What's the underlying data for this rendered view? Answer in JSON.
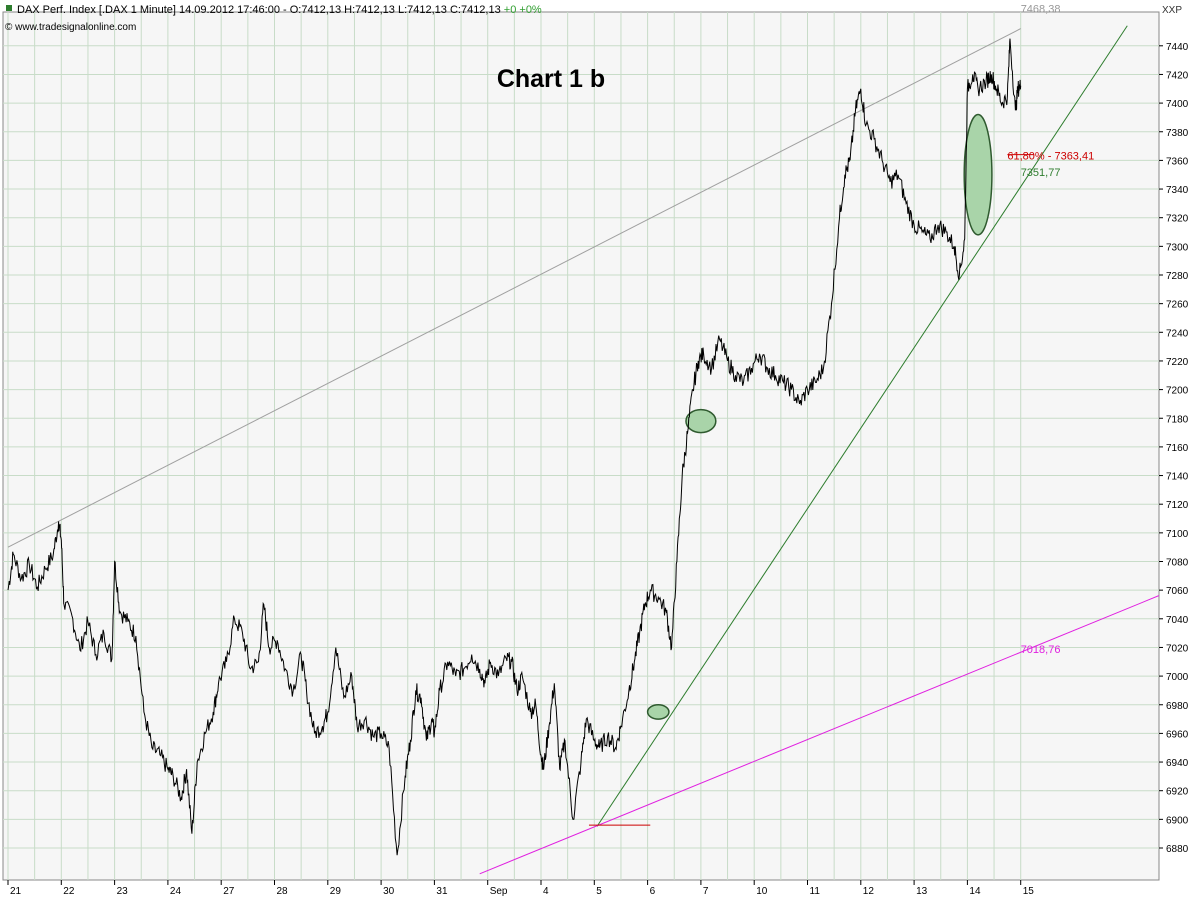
{
  "header": {
    "title": "DAX Perf. Index [.DAX  1 Minute] 14.09.2012 17:46:00 - O:7412,13 H:7412,13 L:7412,13 C:7412,13",
    "change": "+0 +0%",
    "source": "© www.tradesignalonline.com",
    "corner_label": "XXP"
  },
  "chart_data": {
    "type": "line",
    "title": "Chart 1 b",
    "xlabel": "",
    "ylabel": "",
    "ylim": [
      6862,
      7454
    ],
    "y_ticks": [
      6880,
      6900,
      6920,
      6940,
      6960,
      6980,
      7000,
      7020,
      7040,
      7060,
      7080,
      7100,
      7120,
      7140,
      7160,
      7180,
      7200,
      7220,
      7240,
      7260,
      7280,
      7300,
      7320,
      7340,
      7360,
      7380,
      7400,
      7420,
      7440
    ],
    "x_ticks": [
      "21",
      "22",
      "23",
      "24",
      "27",
      "28",
      "29",
      "30",
      "31",
      "Sep",
      "4",
      "5",
      "6",
      "7",
      "10",
      "11",
      "12",
      "13",
      "14",
      "15"
    ],
    "grid": true,
    "colors": {
      "price": "#000000",
      "upper_trendline": "#a0a0a0",
      "green_trendline": "#2e7d2e",
      "magenta_trendline": "#e020e0",
      "fib_label": "#cc0000",
      "marker_fill": "#a9d4a9",
      "marker_stroke": "#2f5a2f",
      "grid": "#c8dcc8"
    },
    "series": [
      {
        "values": [
          [
            0,
            7060
          ],
          [
            0.1,
            7085
          ],
          [
            0.25,
            7068
          ],
          [
            0.4,
            7078
          ],
          [
            0.55,
            7062
          ],
          [
            0.7,
            7075
          ],
          [
            0.85,
            7085
          ],
          [
            0.95,
            7108
          ],
          [
            1.0,
            7095
          ],
          [
            1.05,
            7050
          ],
          [
            1.2,
            7042
          ],
          [
            1.35,
            7018
          ],
          [
            1.5,
            7038
          ],
          [
            1.65,
            7015
          ],
          [
            1.8,
            7030
          ],
          [
            1.95,
            7012
          ],
          [
            2.0,
            7080
          ],
          [
            2.1,
            7045
          ],
          [
            2.25,
            7038
          ],
          [
            2.4,
            7028
          ],
          [
            2.55,
            6975
          ],
          [
            2.7,
            6950
          ],
          [
            2.85,
            6945
          ],
          [
            3.0,
            6935
          ],
          [
            3.1,
            6930
          ],
          [
            3.25,
            6915
          ],
          [
            3.35,
            6935
          ],
          [
            3.45,
            6890
          ],
          [
            3.55,
            6940
          ],
          [
            3.7,
            6960
          ],
          [
            3.85,
            6975
          ],
          [
            3.95,
            6995
          ],
          [
            4.1,
            7010
          ],
          [
            4.25,
            7040
          ],
          [
            4.4,
            7030
          ],
          [
            4.55,
            7005
          ],
          [
            4.7,
            7010
          ],
          [
            4.8,
            7050
          ],
          [
            4.9,
            7020
          ],
          [
            5.05,
            7025
          ],
          [
            5.2,
            7005
          ],
          [
            5.35,
            6990
          ],
          [
            5.5,
            7015
          ],
          [
            5.6,
            6990
          ],
          [
            5.75,
            6960
          ],
          [
            5.9,
            6965
          ],
          [
            6.0,
            6975
          ],
          [
            6.15,
            7020
          ],
          [
            6.3,
            6985
          ],
          [
            6.45,
            7000
          ],
          [
            6.55,
            6965
          ],
          [
            6.7,
            6970
          ],
          [
            6.85,
            6958
          ],
          [
            7.0,
            6960
          ],
          [
            7.15,
            6950
          ],
          [
            7.3,
            6875
          ],
          [
            7.45,
            6930
          ],
          [
            7.55,
            6955
          ],
          [
            7.65,
            6990
          ],
          [
            7.75,
            6985
          ],
          [
            7.85,
            6955
          ],
          [
            7.95,
            6970
          ],
          [
            8.0,
            6960
          ],
          [
            8.1,
            6990
          ],
          [
            8.25,
            7010
          ],
          [
            8.4,
            7000
          ],
          [
            8.55,
            7005
          ],
          [
            8.7,
            7015
          ],
          [
            8.85,
            7005
          ],
          [
            8.95,
            6995
          ],
          [
            9.05,
            7010
          ],
          [
            9.2,
            7000
          ],
          [
            9.35,
            7012
          ],
          [
            9.45,
            7010
          ],
          [
            9.55,
            6990
          ],
          [
            9.65,
            7000
          ],
          [
            9.8,
            6975
          ],
          [
            9.9,
            6980
          ],
          [
            10.0,
            6945
          ],
          [
            10.05,
            6935
          ],
          [
            10.15,
            6965
          ],
          [
            10.25,
            6995
          ],
          [
            10.35,
            6935
          ],
          [
            10.45,
            6955
          ],
          [
            10.6,
            6900
          ],
          [
            10.75,
            6940
          ],
          [
            10.85,
            6970
          ],
          [
            11.0,
            6955
          ],
          [
            11.1,
            6950
          ],
          [
            11.25,
            6958
          ],
          [
            11.4,
            6950
          ],
          [
            11.5,
            6965
          ],
          [
            11.65,
            6990
          ],
          [
            11.75,
            7010
          ],
          [
            11.85,
            7030
          ],
          [
            11.95,
            7050
          ],
          [
            12.05,
            7060
          ],
          [
            12.2,
            7055
          ],
          [
            12.35,
            7045
          ],
          [
            12.45,
            7020
          ],
          [
            12.55,
            7080
          ],
          [
            12.65,
            7140
          ],
          [
            12.75,
            7170
          ],
          [
            12.85,
            7200
          ],
          [
            12.95,
            7220
          ],
          [
            13.05,
            7225
          ],
          [
            13.2,
            7215
          ],
          [
            13.35,
            7235
          ],
          [
            13.5,
            7220
          ],
          [
            13.65,
            7210
          ],
          [
            13.8,
            7205
          ],
          [
            13.95,
            7215
          ],
          [
            14.1,
            7225
          ],
          [
            14.25,
            7215
          ],
          [
            14.4,
            7210
          ],
          [
            14.55,
            7205
          ],
          [
            14.7,
            7200
          ],
          [
            14.85,
            7190
          ],
          [
            15.0,
            7200
          ],
          [
            15.15,
            7205
          ],
          [
            15.3,
            7215
          ],
          [
            15.45,
            7260
          ],
          [
            15.6,
            7320
          ],
          [
            15.7,
            7350
          ],
          [
            15.8,
            7360
          ],
          [
            15.9,
            7395
          ],
          [
            16.0,
            7410
          ],
          [
            16.1,
            7385
          ],
          [
            16.25,
            7375
          ],
          [
            16.4,
            7360
          ],
          [
            16.55,
            7345
          ],
          [
            16.7,
            7350
          ],
          [
            16.85,
            7330
          ],
          [
            17.0,
            7315
          ],
          [
            17.15,
            7310
          ],
          [
            17.3,
            7305
          ],
          [
            17.45,
            7315
          ],
          [
            17.6,
            7310
          ],
          [
            17.75,
            7300
          ],
          [
            17.85,
            7280
          ],
          [
            17.95,
            7305
          ],
          [
            18.0,
            7410
          ],
          [
            18.1,
            7420
          ],
          [
            18.2,
            7410
          ],
          [
            18.35,
            7415
          ],
          [
            18.45,
            7420
          ],
          [
            18.55,
            7410
          ],
          [
            18.65,
            7400
          ],
          [
            18.75,
            7405
          ],
          [
            18.8,
            7445
          ],
          [
            18.9,
            7395
          ],
          [
            18.95,
            7410
          ],
          [
            19.0,
            7412.13
          ]
        ]
      }
    ],
    "lines": [
      {
        "name": "upper-trendline",
        "from": [
          0,
          7090
        ],
        "to": [
          19.0,
          7452
        ]
      },
      {
        "name": "green-trendline",
        "from": [
          11.05,
          6895
        ],
        "to": [
          21.0,
          7454
        ]
      },
      {
        "name": "magenta-trendline",
        "from": [
          8.85,
          6862
        ],
        "to": [
          22.5,
          7070
        ]
      },
      {
        "name": "fib-mark",
        "from": [
          10.9,
          6896
        ],
        "to": [
          12.05,
          6896
        ]
      },
      {
        "name": "fib-level",
        "from": [
          18.75,
          7364
        ],
        "to": [
          19.25,
          7364
        ]
      }
    ],
    "annotations": [
      {
        "text": "7468,38",
        "x": 19.0,
        "y": 7466
      },
      {
        "text": "61,80% - 7363,41",
        "x": 18.75,
        "y": 7363.41
      },
      {
        "text": "7351,77",
        "x": 19.0,
        "y": 7351.77
      },
      {
        "text": "7018,76",
        "x": 19.0,
        "y": 7018.76
      }
    ],
    "markers": [
      {
        "shape": "ellipse",
        "x": 12.2,
        "y": 6975,
        "rx": 0.2,
        "ry": 5
      },
      {
        "shape": "ellipse",
        "x": 13.0,
        "y": 7178,
        "rx": 0.28,
        "ry": 8
      },
      {
        "shape": "ellipse",
        "x": 18.2,
        "y": 7350,
        "rx": 0.26,
        "ry": 42
      }
    ]
  }
}
